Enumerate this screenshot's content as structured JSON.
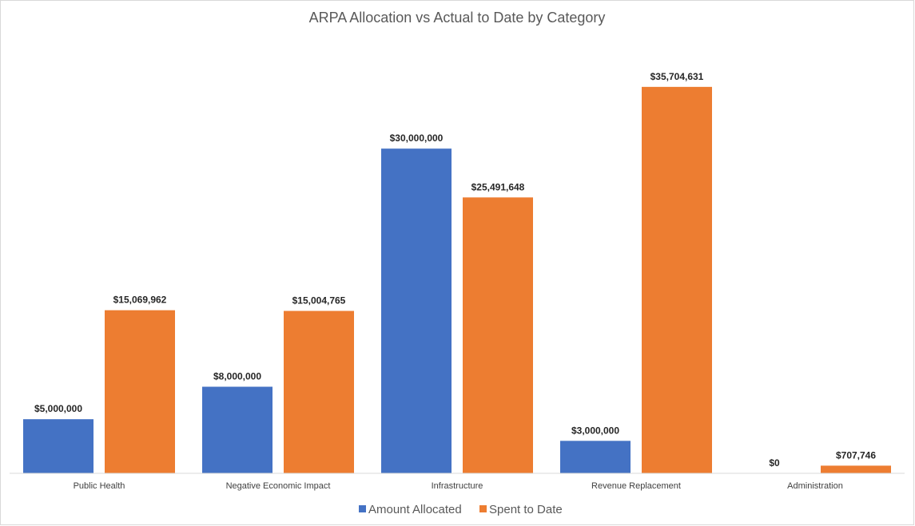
{
  "chart_data": {
    "type": "bar",
    "title": "ARPA Allocation vs Actual to Date by Category",
    "xlabel": "",
    "ylabel": "",
    "ylim": [
      0,
      40000000
    ],
    "grid": false,
    "legend_position": "bottom",
    "categories": [
      "Public Health",
      "Negative Economic Impact",
      "Infrastructure",
      "Revenue Replacement",
      "Administration"
    ],
    "series": [
      {
        "name": "Amount Allocated",
        "color": "#4472C4",
        "values": [
          5000000,
          8000000,
          30000000,
          3000000,
          0
        ],
        "labels": [
          "$5,000,000",
          "$8,000,000",
          "$30,000,000",
          "$3,000,000",
          "$0"
        ]
      },
      {
        "name": "Spent to Date",
        "color": "#ED7D31",
        "values": [
          15069962,
          15004765,
          25491648,
          35704631,
          707746
        ],
        "labels": [
          "$15,069,962",
          "$15,004,765",
          "$25,491,648",
          "$35,704,631",
          "$707,746"
        ]
      }
    ]
  }
}
